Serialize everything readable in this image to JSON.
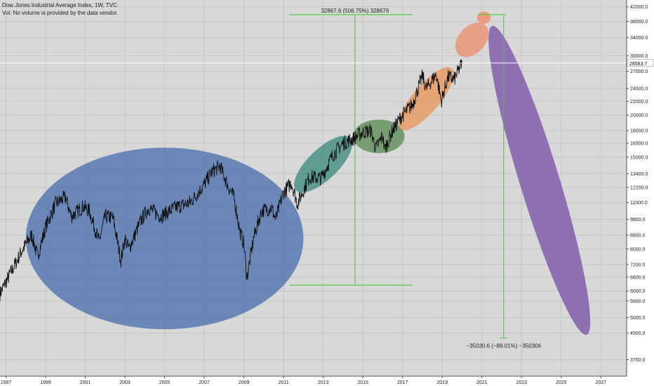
{
  "header": {
    "title": "Dow Jones Industrial Average Index, 1W, TVC",
    "subtitle": "Vol: No volume is provided by the data vendor."
  },
  "chart_data": {
    "type": "line",
    "scale": "log",
    "xlim": [
      1996.7,
      2028.3
    ],
    "ylim": [
      3350,
      44000
    ],
    "x_ticks": [
      1997,
      1999,
      2001,
      2003,
      2005,
      2007,
      2009,
      2011,
      2013,
      2015,
      2017,
      2019,
      2021,
      2023,
      2025,
      2027
    ],
    "y_ticks": [
      {
        "v": 42000,
        "label": "42000.0"
      },
      {
        "v": 38000,
        "label": "38000.0"
      },
      {
        "v": 34000,
        "label": "34000.0"
      },
      {
        "v": 30000,
        "label": "30000.0"
      },
      {
        "v": 27000,
        "label": "27000.0"
      },
      {
        "v": 24000,
        "label": "24000.0"
      },
      {
        "v": 22000,
        "label": "22000.0"
      },
      {
        "v": 20000,
        "label": "20000.0"
      },
      {
        "v": 18000,
        "label": "18000.0"
      },
      {
        "v": 16500,
        "label": "16500.0"
      },
      {
        "v": 15000,
        "label": "15000.0"
      },
      {
        "v": 13400,
        "label": "13400.0"
      },
      {
        "v": 12200,
        "label": "12200.0"
      },
      {
        "v": 11000,
        "label": "11000.0"
      },
      {
        "v": 9800,
        "label": "9800.0"
      },
      {
        "v": 8800,
        "label": "8800.0"
      },
      {
        "v": 8000,
        "label": "8000.0"
      },
      {
        "v": 7200,
        "label": "7200.0"
      },
      {
        "v": 6600,
        "label": "6600.0"
      },
      {
        "v": 6000,
        "label": "6000.0"
      },
      {
        "v": 5600,
        "label": "5600.0"
      },
      {
        "v": 5000,
        "label": "5000.0"
      },
      {
        "v": 4500,
        "label": "4500.0"
      },
      {
        "v": 3750,
        "label": "3750.0"
      }
    ],
    "current_price": {
      "value": 28583.7,
      "label": "28583.7"
    },
    "price_anchors": [
      [
        1996.7,
        5900
      ],
      [
        1997.3,
        6900
      ],
      [
        1997.8,
        7900
      ],
      [
        1998.3,
        8800
      ],
      [
        1998.6,
        7600
      ],
      [
        1999.0,
        9300
      ],
      [
        1999.5,
        10900
      ],
      [
        2000.0,
        11400
      ],
      [
        2000.3,
        10000
      ],
      [
        2000.9,
        10700
      ],
      [
        2001.2,
        10400
      ],
      [
        2001.7,
        8400
      ],
      [
        2002.0,
        10000
      ],
      [
        2002.4,
        9900
      ],
      [
        2002.8,
        7400
      ],
      [
        2003.0,
        8600
      ],
      [
        2003.2,
        8000
      ],
      [
        2003.8,
        9700
      ],
      [
        2004.2,
        10600
      ],
      [
        2004.8,
        10000
      ],
      [
        2005.5,
        10600
      ],
      [
        2006.3,
        11000
      ],
      [
        2006.9,
        12200
      ],
      [
        2007.4,
        13600
      ],
      [
        2007.8,
        14100
      ],
      [
        2008.2,
        12300
      ],
      [
        2008.5,
        11400
      ],
      [
        2008.8,
        9000
      ],
      [
        2009.0,
        8300
      ],
      [
        2009.15,
        6550
      ],
      [
        2009.5,
        8700
      ],
      [
        2009.9,
        10400
      ],
      [
        2010.4,
        10600
      ],
      [
        2010.6,
        9800
      ],
      [
        2011.0,
        11800
      ],
      [
        2011.4,
        12600
      ],
      [
        2011.7,
        10900
      ],
      [
        2012.3,
        13100
      ],
      [
        2012.9,
        13000
      ],
      [
        2013.5,
        15300
      ],
      [
        2014.0,
        16500
      ],
      [
        2014.5,
        17000
      ],
      [
        2015.0,
        17800
      ],
      [
        2015.4,
        18000
      ],
      [
        2015.65,
        15900
      ],
      [
        2016.0,
        17400
      ],
      [
        2016.1,
        15800
      ],
      [
        2016.5,
        18000
      ],
      [
        2016.9,
        19700
      ],
      [
        2017.5,
        21500
      ],
      [
        2018.0,
        26200
      ],
      [
        2018.2,
        24000
      ],
      [
        2018.7,
        26500
      ],
      [
        2018.95,
        22000
      ],
      [
        2019.3,
        26000
      ],
      [
        2019.6,
        25500
      ],
      [
        2020.0,
        28600
      ]
    ],
    "ellipses": [
      {
        "name": "phase-1",
        "color": "#4a6fae",
        "cx": 2005.0,
        "cy": 8600,
        "rx_years": 7,
        "ry_log": 0.27,
        "angle_deg": 0
      },
      {
        "name": "phase-2",
        "color": "#3f8a80",
        "cx": 2013.0,
        "cy": 14300,
        "rx_years": 1.9,
        "ry_log": 0.045,
        "angle_deg": -44
      },
      {
        "name": "phase-3",
        "color": "#5a8a55",
        "cx": 2015.8,
        "cy": 17300,
        "rx_years": 1.3,
        "ry_log": 0.05,
        "angle_deg": 0
      },
      {
        "name": "phase-4",
        "color": "#e8965a",
        "cx": 2018.2,
        "cy": 22400,
        "rx_years": 2.0,
        "ry_log": 0.04,
        "angle_deg": -50
      },
      {
        "name": "phase-5",
        "color": "#e8906e",
        "cx": 2020.5,
        "cy": 33500,
        "rx_years": 1.0,
        "ry_log": 0.04,
        "angle_deg": -48
      },
      {
        "name": "phase-6",
        "color": "#f08a6a",
        "cx": 2021.1,
        "cy": 39000,
        "rx_years": 0.35,
        "ry_log": 0.018,
        "angle_deg": 0
      },
      {
        "name": "phase-7-collapse",
        "color": "#7a52a8",
        "cx": 2023.9,
        "cy": 12800,
        "rx_years": 1.0,
        "ry_log": 0.48,
        "angle_deg": -17
      }
    ],
    "measure_up": {
      "x_start": 2011.3,
      "x_end": 2017.5,
      "x_line": 2014.6,
      "y_low": 6250,
      "y_high": 39800,
      "label": "32867.6 (506.75%) 328676"
    },
    "measure_down": {
      "x_start": 2020.8,
      "x_end": 2022.2,
      "x_line": 2022.1,
      "y_high": 39800,
      "y_low": 4350,
      "label": "−35030.6 (−89.01%) −350306"
    }
  }
}
